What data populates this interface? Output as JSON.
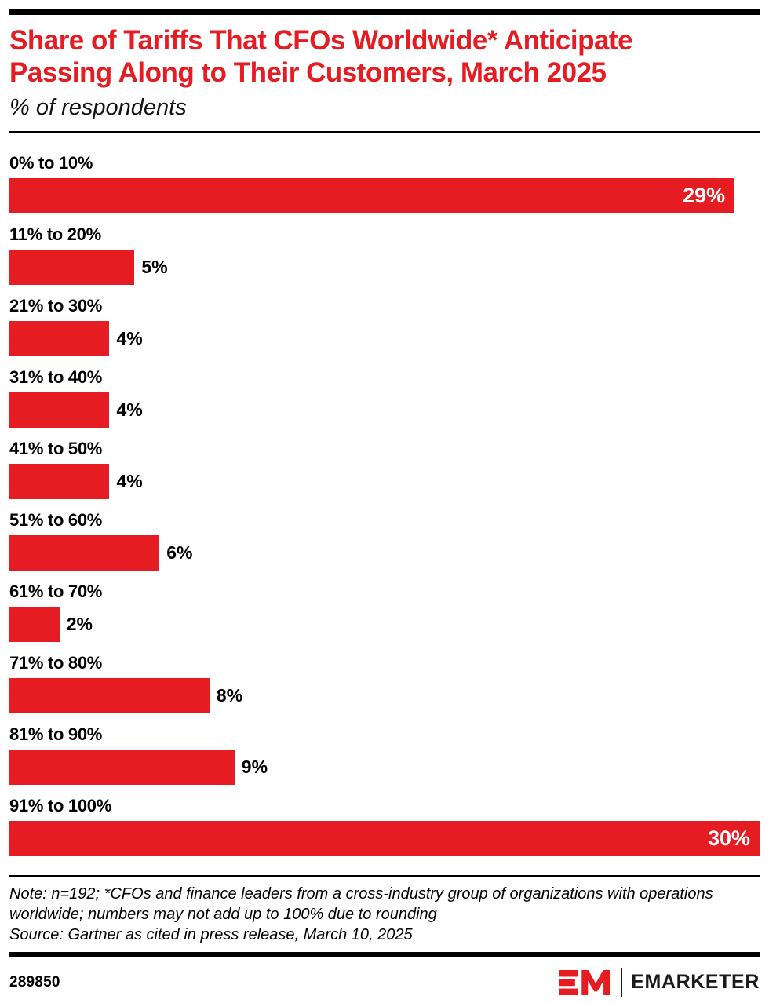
{
  "header": {
    "title_line1": "Share of Tariffs That CFOs Worldwide* Anticipate",
    "title_line2": "Passing Along to Their Customers, March 2025",
    "subtitle": "% of respondents"
  },
  "chart_data": {
    "type": "bar",
    "orientation": "horizontal",
    "title": "Share of Tariffs That CFOs Worldwide* Anticipate Passing Along to Their Customers, March 2025",
    "subtitle": "% of respondents",
    "categories": [
      "0% to 10%",
      "11% to 20%",
      "21% to 30%",
      "31% to 40%",
      "41% to 50%",
      "51% to 60%",
      "61% to 70%",
      "71% to 80%",
      "81% to 90%",
      "91% to 100%"
    ],
    "values": [
      29,
      5,
      4,
      4,
      4,
      6,
      2,
      8,
      9,
      30
    ],
    "value_labels": [
      "29%",
      "5%",
      "4%",
      "4%",
      "4%",
      "6%",
      "2%",
      "8%",
      "9%",
      "30%"
    ],
    "xlim": [
      0,
      30
    ],
    "grid": false,
    "legend": false,
    "bar_color": "#E61C23"
  },
  "notes": {
    "note": "Note: n=192; *CFOs and finance leaders from a cross-industry group of organizations with operations worldwide; numbers may not add up to 100% due to rounding",
    "source": "Source: Gartner as cited in press release, March 10, 2025"
  },
  "footer": {
    "chart_id": "289850",
    "brand_wordmark": "EMARKETER"
  },
  "colors": {
    "accent": "#E61C23",
    "text": "#000000",
    "value_inside": "#FFFFFF"
  }
}
